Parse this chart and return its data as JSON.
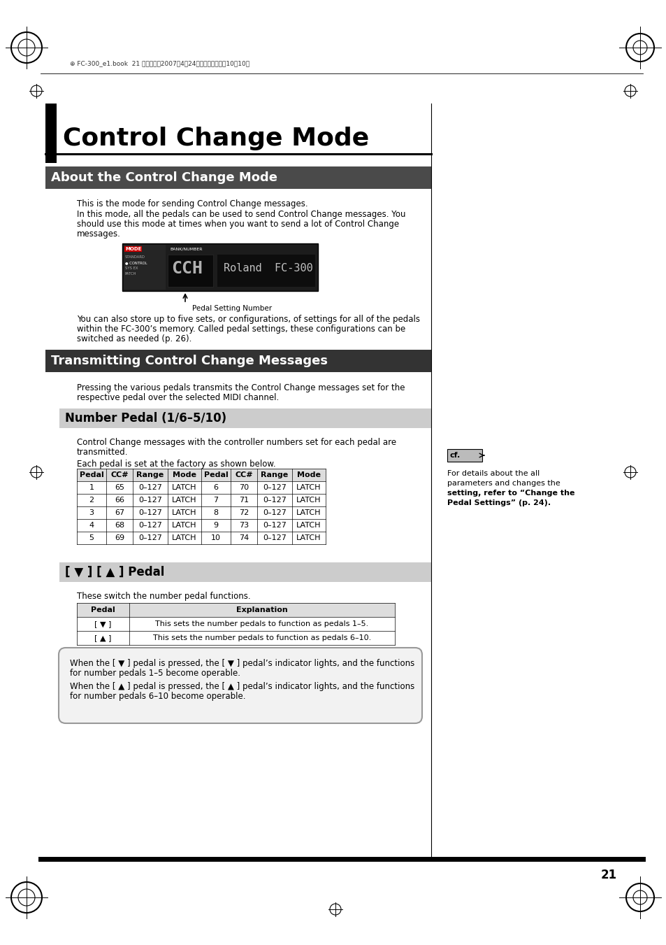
{
  "page_bg": "#ffffff",
  "page_num": "21",
  "main_title": "Control Change Mode",
  "section1_title": "About the Control Change Mode",
  "section1_bg": "#4a4a4a",
  "section1_text_color": "#ffffff",
  "para1": "This is the mode for sending Control Change messages.",
  "para2a": "In this mode, all the pedals can be used to send Control Change messages. You",
  "para2b": "should use this mode at times when you want to send a lot of Control Change",
  "para2c": "messages.",
  "display_caption": "Pedal Setting Number",
  "para3a": "You can also store up to five sets, or configurations, of settings for all of the pedals",
  "para3b": "within the FC-300’s memory. Called pedal settings, these configurations can be",
  "para3c": "switched as needed (p. 26).",
  "section2_title": "Transmitting Control Change Messages",
  "section2_bg": "#333333",
  "section2_text_color": "#ffffff",
  "para4a": "Pressing the various pedals transmits the Control Change messages set for the",
  "para4b": "respective pedal over the selected MIDI channel.",
  "subsection1_title": "Number Pedal (1/6–5/10)",
  "subsection1_bg": "#cccccc",
  "para5a": "Control Change messages with the controller numbers set for each pedal are",
  "para5b": "transmitted.",
  "para6": "Each pedal is set at the factory as shown below.",
  "table1_headers": [
    "Pedal",
    "CC#",
    "Range",
    "Mode",
    "Pedal",
    "CC#",
    "Range",
    "Mode"
  ],
  "table1_rows": [
    [
      "1",
      "65",
      "0–127",
      "LATCH",
      "6",
      "70",
      "0–127",
      "LATCH"
    ],
    [
      "2",
      "66",
      "0–127",
      "LATCH",
      "7",
      "71",
      "0–127",
      "LATCH"
    ],
    [
      "3",
      "67",
      "0–127",
      "LATCH",
      "8",
      "72",
      "0–127",
      "LATCH"
    ],
    [
      "4",
      "68",
      "0–127",
      "LATCH",
      "9",
      "73",
      "0–127",
      "LATCH"
    ],
    [
      "5",
      "69",
      "0–127",
      "LATCH",
      "10",
      "74",
      "0–127",
      "LATCH"
    ]
  ],
  "subsection2_title": "[ ▼ ] [ ▲ ] Pedal",
  "subsection2_bg": "#cccccc",
  "para7": "These switch the number pedal functions.",
  "table2_headers": [
    "Pedal",
    "Explanation"
  ],
  "table2_rows": [
    [
      "[ ▼ ]",
      "This sets the number pedals to function as pedals 1–5."
    ],
    [
      "[ ▲ ]",
      "This sets the number pedals to function as pedals 6–10."
    ]
  ],
  "note_line1": "When the [ ▼ ] pedal is pressed, the [ ▼ ] pedal’s indicator lights, and the functions",
  "note_line2": "for number pedals 1–5 become operable.",
  "note_line3": "When the [ ▲ ] pedal is pressed, the [ ▲ ] pedal’s indicator lights, and the functions",
  "note_line4": "for number pedals 6–10 become operable.",
  "cf_line1": "For details about the all",
  "cf_line2": "parameters and changes the",
  "cf_line3": "setting, refer to “Change the",
  "cf_line4": "Pedal Settings” (p. 24).",
  "header_line": "⊕ FC-300_e1.book  21 ページ・・2007年4月24日　火曜日　午前10時10分"
}
